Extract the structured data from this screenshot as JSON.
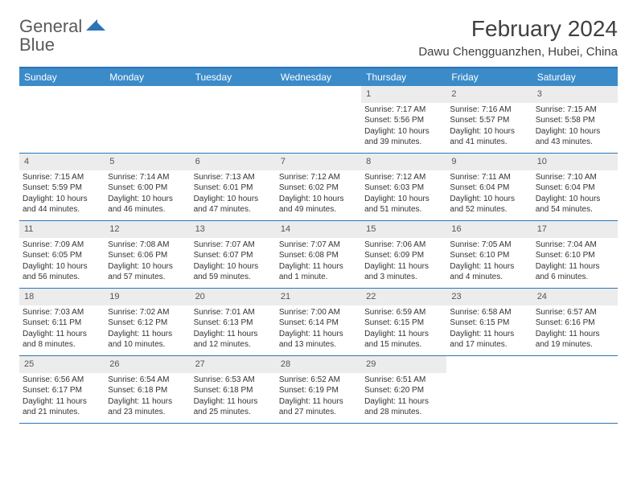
{
  "logo": {
    "word1": "General",
    "word2": "Blue"
  },
  "title": "February 2024",
  "location": "Dawu Chengguanzhen, Hubei, China",
  "colors": {
    "header_bg": "#3b8bc9",
    "border": "#2b74b8",
    "daynum_bg": "#ececec",
    "text": "#333333",
    "logo_gray": "#5a5a5a",
    "logo_blue": "#3b7fc4"
  },
  "weekdays": [
    "Sunday",
    "Monday",
    "Tuesday",
    "Wednesday",
    "Thursday",
    "Friday",
    "Saturday"
  ],
  "weeks": [
    [
      null,
      null,
      null,
      null,
      {
        "n": "1",
        "l1": "Sunrise: 7:17 AM",
        "l2": "Sunset: 5:56 PM",
        "l3": "Daylight: 10 hours and 39 minutes."
      },
      {
        "n": "2",
        "l1": "Sunrise: 7:16 AM",
        "l2": "Sunset: 5:57 PM",
        "l3": "Daylight: 10 hours and 41 minutes."
      },
      {
        "n": "3",
        "l1": "Sunrise: 7:15 AM",
        "l2": "Sunset: 5:58 PM",
        "l3": "Daylight: 10 hours and 43 minutes."
      }
    ],
    [
      {
        "n": "4",
        "l1": "Sunrise: 7:15 AM",
        "l2": "Sunset: 5:59 PM",
        "l3": "Daylight: 10 hours and 44 minutes."
      },
      {
        "n": "5",
        "l1": "Sunrise: 7:14 AM",
        "l2": "Sunset: 6:00 PM",
        "l3": "Daylight: 10 hours and 46 minutes."
      },
      {
        "n": "6",
        "l1": "Sunrise: 7:13 AM",
        "l2": "Sunset: 6:01 PM",
        "l3": "Daylight: 10 hours and 47 minutes."
      },
      {
        "n": "7",
        "l1": "Sunrise: 7:12 AM",
        "l2": "Sunset: 6:02 PM",
        "l3": "Daylight: 10 hours and 49 minutes."
      },
      {
        "n": "8",
        "l1": "Sunrise: 7:12 AM",
        "l2": "Sunset: 6:03 PM",
        "l3": "Daylight: 10 hours and 51 minutes."
      },
      {
        "n": "9",
        "l1": "Sunrise: 7:11 AM",
        "l2": "Sunset: 6:04 PM",
        "l3": "Daylight: 10 hours and 52 minutes."
      },
      {
        "n": "10",
        "l1": "Sunrise: 7:10 AM",
        "l2": "Sunset: 6:04 PM",
        "l3": "Daylight: 10 hours and 54 minutes."
      }
    ],
    [
      {
        "n": "11",
        "l1": "Sunrise: 7:09 AM",
        "l2": "Sunset: 6:05 PM",
        "l3": "Daylight: 10 hours and 56 minutes."
      },
      {
        "n": "12",
        "l1": "Sunrise: 7:08 AM",
        "l2": "Sunset: 6:06 PM",
        "l3": "Daylight: 10 hours and 57 minutes."
      },
      {
        "n": "13",
        "l1": "Sunrise: 7:07 AM",
        "l2": "Sunset: 6:07 PM",
        "l3": "Daylight: 10 hours and 59 minutes."
      },
      {
        "n": "14",
        "l1": "Sunrise: 7:07 AM",
        "l2": "Sunset: 6:08 PM",
        "l3": "Daylight: 11 hours and 1 minute."
      },
      {
        "n": "15",
        "l1": "Sunrise: 7:06 AM",
        "l2": "Sunset: 6:09 PM",
        "l3": "Daylight: 11 hours and 3 minutes."
      },
      {
        "n": "16",
        "l1": "Sunrise: 7:05 AM",
        "l2": "Sunset: 6:10 PM",
        "l3": "Daylight: 11 hours and 4 minutes."
      },
      {
        "n": "17",
        "l1": "Sunrise: 7:04 AM",
        "l2": "Sunset: 6:10 PM",
        "l3": "Daylight: 11 hours and 6 minutes."
      }
    ],
    [
      {
        "n": "18",
        "l1": "Sunrise: 7:03 AM",
        "l2": "Sunset: 6:11 PM",
        "l3": "Daylight: 11 hours and 8 minutes."
      },
      {
        "n": "19",
        "l1": "Sunrise: 7:02 AM",
        "l2": "Sunset: 6:12 PM",
        "l3": "Daylight: 11 hours and 10 minutes."
      },
      {
        "n": "20",
        "l1": "Sunrise: 7:01 AM",
        "l2": "Sunset: 6:13 PM",
        "l3": "Daylight: 11 hours and 12 minutes."
      },
      {
        "n": "21",
        "l1": "Sunrise: 7:00 AM",
        "l2": "Sunset: 6:14 PM",
        "l3": "Daylight: 11 hours and 13 minutes."
      },
      {
        "n": "22",
        "l1": "Sunrise: 6:59 AM",
        "l2": "Sunset: 6:15 PM",
        "l3": "Daylight: 11 hours and 15 minutes."
      },
      {
        "n": "23",
        "l1": "Sunrise: 6:58 AM",
        "l2": "Sunset: 6:15 PM",
        "l3": "Daylight: 11 hours and 17 minutes."
      },
      {
        "n": "24",
        "l1": "Sunrise: 6:57 AM",
        "l2": "Sunset: 6:16 PM",
        "l3": "Daylight: 11 hours and 19 minutes."
      }
    ],
    [
      {
        "n": "25",
        "l1": "Sunrise: 6:56 AM",
        "l2": "Sunset: 6:17 PM",
        "l3": "Daylight: 11 hours and 21 minutes."
      },
      {
        "n": "26",
        "l1": "Sunrise: 6:54 AM",
        "l2": "Sunset: 6:18 PM",
        "l3": "Daylight: 11 hours and 23 minutes."
      },
      {
        "n": "27",
        "l1": "Sunrise: 6:53 AM",
        "l2": "Sunset: 6:18 PM",
        "l3": "Daylight: 11 hours and 25 minutes."
      },
      {
        "n": "28",
        "l1": "Sunrise: 6:52 AM",
        "l2": "Sunset: 6:19 PM",
        "l3": "Daylight: 11 hours and 27 minutes."
      },
      {
        "n": "29",
        "l1": "Sunrise: 6:51 AM",
        "l2": "Sunset: 6:20 PM",
        "l3": "Daylight: 11 hours and 28 minutes."
      },
      null,
      null
    ]
  ]
}
